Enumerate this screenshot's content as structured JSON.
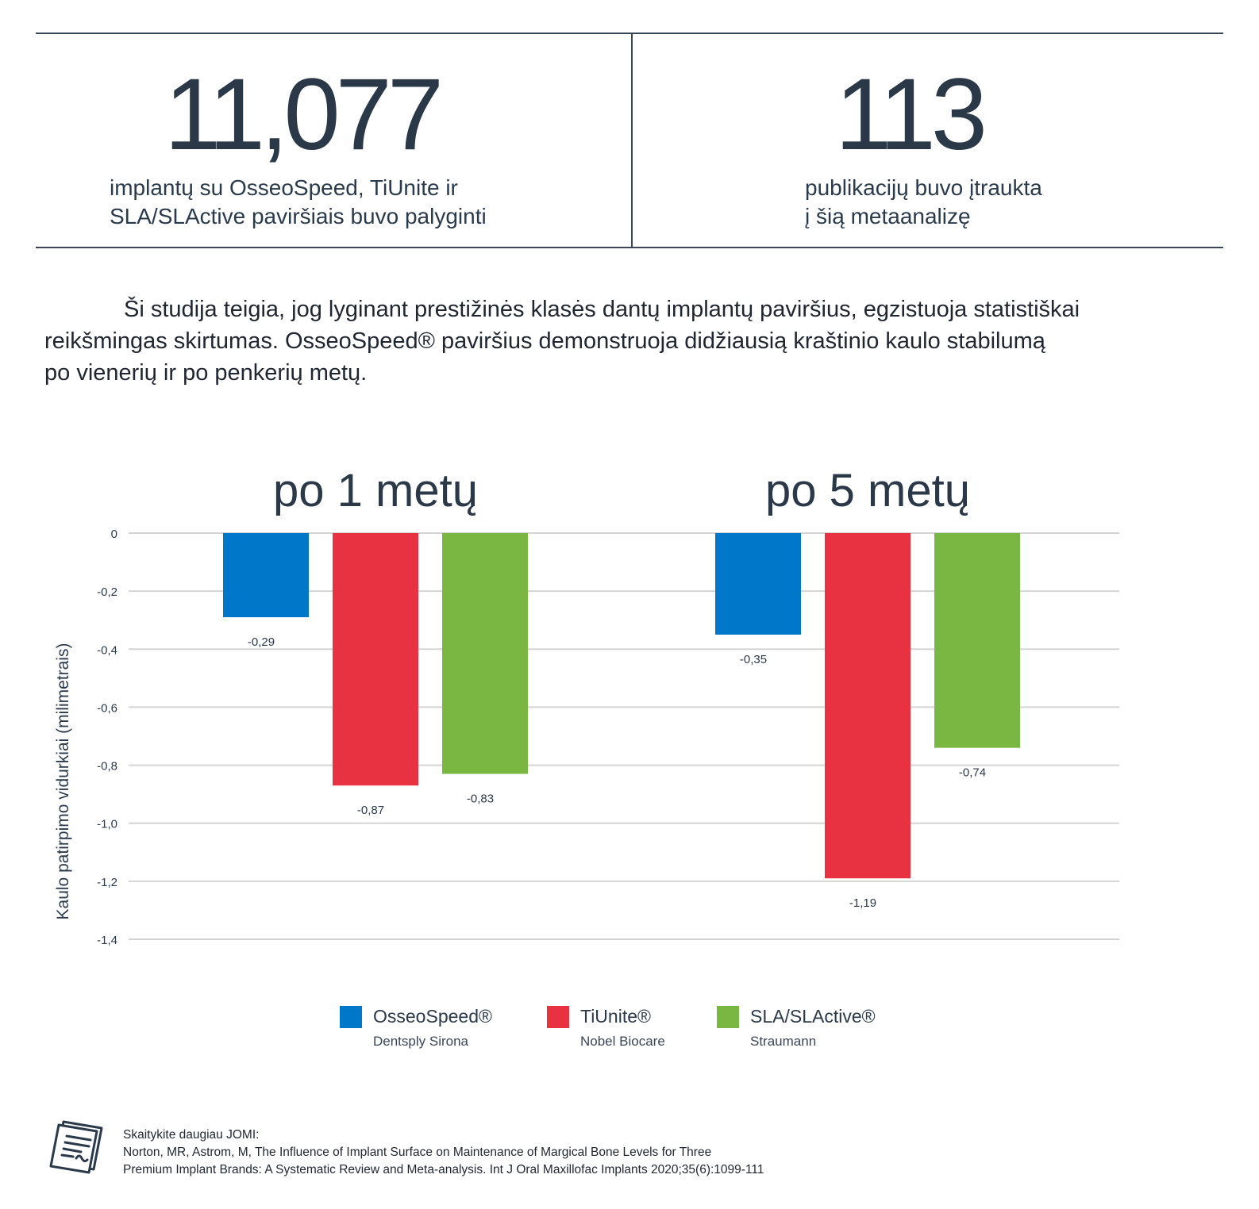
{
  "stats": {
    "left": {
      "number": "11,077",
      "line1": "implantų su OsseoSpeed, TiUnite ir",
      "line2": "SLA/SLActive paviršiais buvo palyginti"
    },
    "right": {
      "number": "113",
      "line1": "publikacijų buvo įtraukta",
      "line2": "į šią metaanalizę"
    }
  },
  "intro": {
    "line1": "Ši studija teigia, jog lyginant prestižinės klasės dantų implantų paviršius, egzistuoja statistiškai",
    "line2": "reikšmingas skirtumas. OsseoSpeed® paviršius demonstruoja didžiausią kraštinio kaulo stabilumą",
    "line3": "po vienerių ir po penkerių metų."
  },
  "chart_data": {
    "type": "bar",
    "categories": [
      "po 1 metų",
      "po 5 metų"
    ],
    "series": [
      {
        "name": "OsseoSpeed®",
        "brand": "Dentsply Sirona",
        "color": "#0077c8",
        "values": [
          -0.29,
          -0.35
        ]
      },
      {
        "name": "TiUnite®",
        "brand": "Nobel Biocare",
        "color": "#e83241",
        "values": [
          -0.87,
          -1.19
        ]
      },
      {
        "name": "SLA/SLActive®",
        "brand": "Straumann",
        "color": "#7ab642",
        "values": [
          -0.83,
          -0.74
        ]
      }
    ],
    "value_labels": [
      [
        "-0,29",
        "-0,87",
        "-0,83"
      ],
      [
        "-0,35",
        "-1,19",
        "-0,74"
      ]
    ],
    "ylabel": "Kaulo patirpimo vidurkiai (milimetrais)",
    "ylim": [
      -1.4,
      0
    ],
    "yticks": [
      0,
      -0.2,
      -0.4,
      -0.6,
      -0.8,
      -1.0,
      -1.2,
      -1.4
    ],
    "ytick_labels": [
      "0",
      "-0,2",
      "-0,4",
      "-0,6",
      "-0,8",
      "-1,0",
      "-1,2",
      "-1,4"
    ],
    "grid": true,
    "legend": "bottom"
  },
  "footer": {
    "line1": "Skaitykite daugiau JOMI:",
    "line2": "Norton, MR, Astrom, M, The Influence of Implant Surface on Maintenance of Margical Bone Levels for Three",
    "line3": "Premium Implant Brands: A Systematic Review and Meta-analysis. Int J Oral Maxillofac Implants 2020;35(6):1099-111"
  }
}
